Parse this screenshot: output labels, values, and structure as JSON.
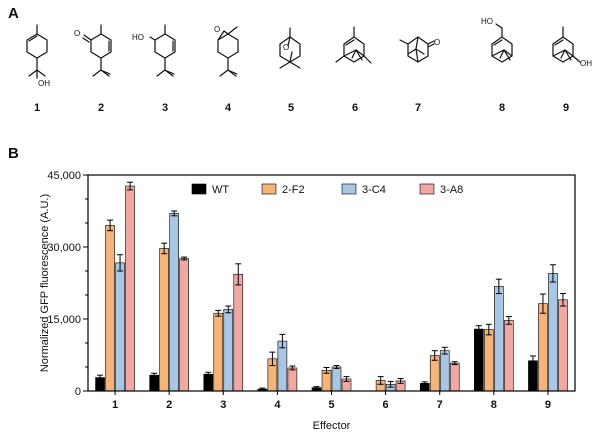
{
  "panels": {
    "a": "A",
    "b": "B"
  },
  "structures": {
    "compounds": [
      "1",
      "2",
      "3",
      "4",
      "5",
      "6",
      "7",
      "8",
      "9"
    ],
    "atoms": {
      "oh": "OH",
      "ketone_o": "O",
      "ho": "HO",
      "epoxide_o": "O",
      "ether_o": "O",
      "camphor_o": "O",
      "ho_ch2": "HO",
      "oh_pinene": "OH"
    }
  },
  "chart_data": {
    "type": "bar",
    "title": "",
    "xlabel": "Effector",
    "ylabel": "Normalized GFP  fluorescence (A.U.)",
    "ylim": [
      0,
      45000
    ],
    "yticks": [
      0,
      15000,
      30000,
      45000
    ],
    "ytick_labels": [
      "0",
      "15,000",
      "30,000",
      "45,000"
    ],
    "categories": [
      "1",
      "2",
      "3",
      "4",
      "5",
      "6",
      "7",
      "8",
      "9"
    ],
    "legend_position": "top",
    "series": [
      {
        "name": "WT",
        "color": "#000000",
        "values": [
          2800,
          3300,
          3500,
          400,
          700,
          0,
          1600,
          12900,
          6300
        ],
        "errors": [
          500,
          400,
          400,
          200,
          200,
          0,
          300,
          700,
          1000
        ]
      },
      {
        "name": "2-F2",
        "color": "#F4B57A",
        "values": [
          34500,
          29700,
          16200,
          6700,
          4300,
          2200,
          7400,
          12800,
          18200
        ],
        "errors": [
          1100,
          1100,
          600,
          1400,
          600,
          800,
          1000,
          1100,
          2000
        ]
      },
      {
        "name": "3-C4",
        "color": "#A9C6E3",
        "values": [
          26700,
          37000,
          17000,
          10400,
          5000,
          1400,
          8400,
          21800,
          24500
        ],
        "errors": [
          1700,
          500,
          700,
          1400,
          300,
          600,
          700,
          1500,
          1800
        ]
      },
      {
        "name": "3-A8",
        "color": "#EFA8A2",
        "values": [
          42700,
          27600,
          24300,
          4800,
          2500,
          2100,
          5800,
          14700,
          19000
        ],
        "errors": [
          800,
          300,
          2200,
          400,
          500,
          500,
          300,
          800,
          1300
        ]
      }
    ]
  }
}
